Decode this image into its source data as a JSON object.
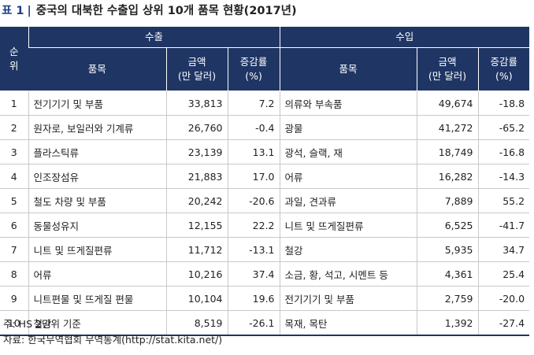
{
  "title": {
    "number": "표 1",
    "text": "중국의 대북한 수출입 상위 10개 품목 현황(2017년)"
  },
  "headers": {
    "rank": "순\n위",
    "export": "수출",
    "import": "수입",
    "item": "품목",
    "amount": "금액\n(만 달러)",
    "change": "증감률\n(%)"
  },
  "rows": [
    {
      "rank": "1",
      "export_item": "전기기기 및 부품",
      "export_amount": "33,813",
      "export_change": "7.2",
      "import_item": "의류와 부속품",
      "import_amount": "49,674",
      "import_change": "-18.8"
    },
    {
      "rank": "2",
      "export_item": "원자로, 보일러와 기계류",
      "export_amount": "26,760",
      "export_change": "-0.4",
      "import_item": "광물",
      "import_amount": "41,272",
      "import_change": "-65.2"
    },
    {
      "rank": "3",
      "export_item": "플라스틱류",
      "export_amount": "23,139",
      "export_change": "13.1",
      "import_item": "광석, 슬랙, 재",
      "import_amount": "18,749",
      "import_change": "-16.8"
    },
    {
      "rank": "4",
      "export_item": "인조장섬유",
      "export_amount": "21,883",
      "export_change": "17.0",
      "import_item": "어류",
      "import_amount": "16,282",
      "import_change": "-14.3"
    },
    {
      "rank": "5",
      "export_item": "철도 차량 및 부품",
      "export_amount": "20,242",
      "export_change": "-20.6",
      "import_item": "과일, 견과류",
      "import_amount": "7,889",
      "import_change": "55.2"
    },
    {
      "rank": "6",
      "export_item": "동물성유지",
      "export_amount": "12,155",
      "export_change": "22.2",
      "import_item": "니트 및 뜨게질편류",
      "import_amount": "6,525",
      "import_change": "-41.7"
    },
    {
      "rank": "7",
      "export_item": "니트 및 뜨게질편류",
      "export_amount": "11,712",
      "export_change": "-13.1",
      "import_item": "철강",
      "import_amount": "5,935",
      "import_change": "34.7"
    },
    {
      "rank": "8",
      "export_item": "어류",
      "export_amount": "10,216",
      "export_change": "37.4",
      "import_item": "소금, 황, 석고, 시멘트 등",
      "import_amount": "4,361",
      "import_change": "25.4"
    },
    {
      "rank": "9",
      "export_item": "니트편물 및 뜨게질 편물",
      "export_amount": "10,104",
      "export_change": "19.6",
      "import_item": "전기기기 및 부품",
      "import_amount": "2,759",
      "import_change": "-20.0"
    },
    {
      "rank": "10",
      "export_item": "철강",
      "export_amount": "8,519",
      "export_change": "-26.1",
      "import_item": "목재, 목탄",
      "import_amount": "1,392",
      "import_change": "-27.4"
    }
  ],
  "notes": {
    "note": "주: HS 2단위 기준",
    "source": "자료: 한국무역협회 무역통계(http://stat.kita.net/)"
  }
}
